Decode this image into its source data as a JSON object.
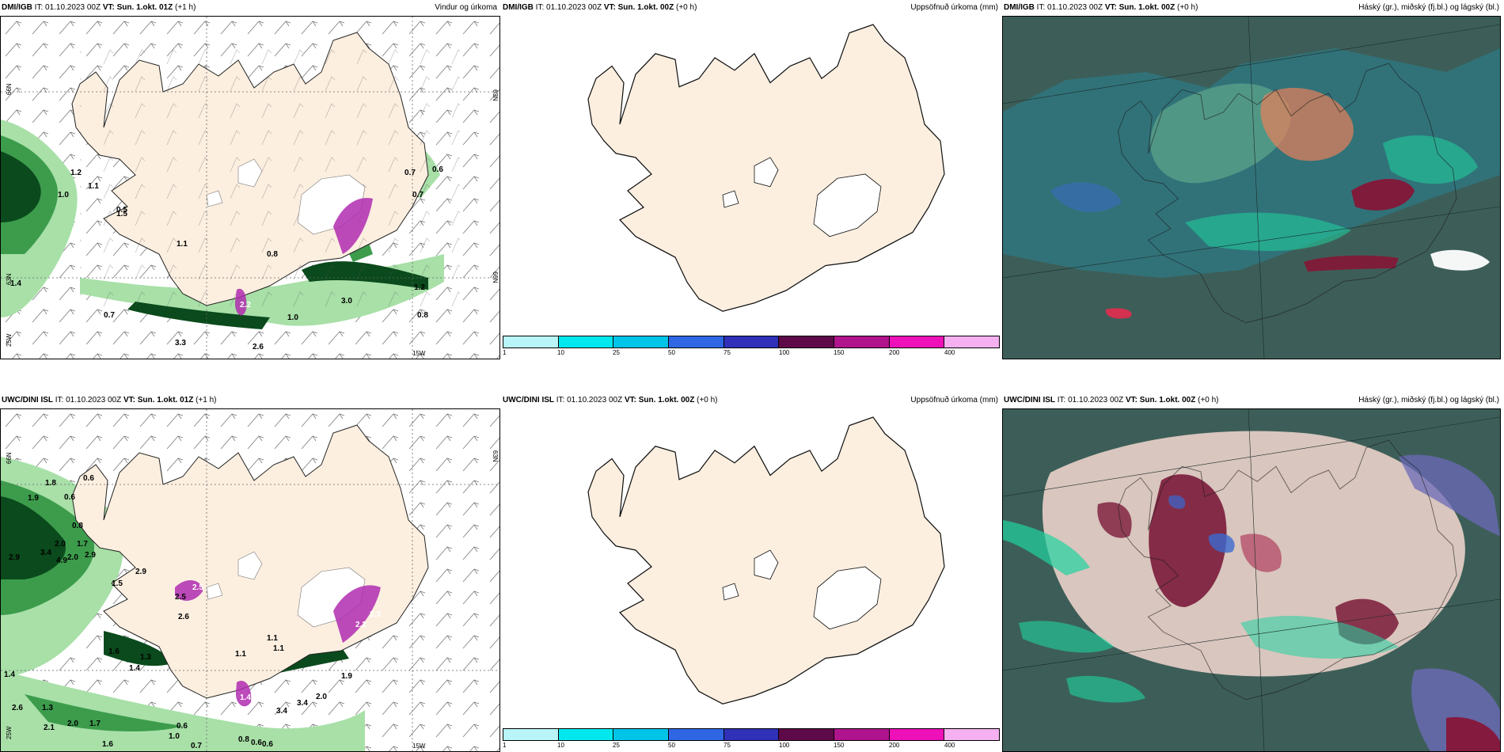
{
  "panels": {
    "p1": {
      "header": {
        "source": "DMI/IGB",
        "it": "IT: 01.10.2023 00Z",
        "vt_label": "VT:",
        "vt_value": "Sun. 1.okt. 01Z",
        "lead": "(+1 h)",
        "right_title": "Vindur og úrkoma"
      },
      "axis_labels": [
        "66N",
        "63N",
        "66N",
        "63N",
        "25W",
        "15W"
      ],
      "precip_labels": [
        "1.2",
        "1.1",
        "1.0",
        "0.5",
        "1.1",
        "0.8",
        "0.7",
        "0.6",
        "0.7",
        "1.5",
        "1.4",
        "0.7",
        "3.3",
        "2.6",
        "1.0",
        "3.0",
        "1.2",
        "0.8",
        "2.2"
      ]
    },
    "p2": {
      "header": {
        "source": "DMI/IGB",
        "it": "IT: 01.10.2023 00Z",
        "vt_label": "VT:",
        "vt_value": "Sun. 1.okt. 00Z",
        "lead": "(+0 h)",
        "right_title": "Uppsöfnuð úrkoma (mm)"
      },
      "colorbar": {
        "ticks": [
          "1",
          "10",
          "25",
          "50",
          "75",
          "100",
          "150",
          "200",
          "400"
        ],
        "colors": [
          "#b8f4f8",
          "#00e8ee",
          "#00c4e8",
          "#2f66e4",
          "#3030b8",
          "#5e0a48",
          "#b0148c",
          "#ee10b8",
          "#f4b0f0"
        ]
      }
    },
    "p3": {
      "header": {
        "source": "DMI/IGB",
        "it": "IT: 01.10.2023 00Z",
        "vt_label": "VT:",
        "vt_value": "Sun. 1.okt. 00Z",
        "lead": "(+0 h)",
        "right_title": "Háský (gr.), miðský (fj.bl.) og lágský (bl.)"
      }
    },
    "p4": {
      "header": {
        "source": "UWC/DINI ISL",
        "it": "IT: 01.10.2023 00Z",
        "vt_label": "VT:",
        "vt_value": "Sun. 1.okt. 01Z",
        "lead": "(+1 h)",
        "right_title": ""
      },
      "axis_labels": [
        "66N",
        "63N",
        "25W",
        "15W"
      ],
      "precip_labels": [
        "1.8",
        "0.6",
        "1.9",
        "2.9",
        "0.6",
        "0.8",
        "2.0",
        "1.7",
        "3.4",
        "4.9",
        "2.0",
        "2.9",
        "1.5",
        "2.9",
        "2.5",
        "2.5",
        "2.6",
        "1.1",
        "1.1",
        "1.3",
        "1.6",
        "1.4",
        "1.4",
        "2.6",
        "1.3",
        "2.1",
        "2.0",
        "1.7",
        "1.6",
        "1.0",
        "0.7",
        "0.6",
        "0.8",
        "0.6",
        "0.6",
        "3.4",
        "3.4",
        "2.0",
        "1.1",
        "1.9",
        "2.2",
        "2.3",
        "1.4"
      ]
    },
    "p5": {
      "header": {
        "source": "UWC/DINI ISL",
        "it": "IT: 01.10.2023 00Z",
        "vt_label": "VT:",
        "vt_value": "Sun. 1.okt. 00Z",
        "lead": "(+0 h)",
        "right_title": "Uppsöfnuð úrkoma (mm)"
      },
      "colorbar": {
        "ticks": [
          "1",
          "10",
          "25",
          "50",
          "75",
          "100",
          "150",
          "200",
          "400"
        ],
        "colors": [
          "#b8f4f8",
          "#00e8ee",
          "#00c4e8",
          "#2f66e4",
          "#3030b8",
          "#5e0a48",
          "#b0148c",
          "#ee10b8",
          "#f4b0f0"
        ]
      }
    },
    "p6": {
      "header": {
        "source": "UWC/DINI ISL",
        "it": "IT: 01.10.2023 00Z",
        "vt_label": "VT:",
        "vt_value": "Sun. 1.okt. 00Z",
        "lead": "(+0 h)",
        "right_title": "Háský (gr.), miðský (fj.bl.) og lágský (bl.)"
      }
    }
  },
  "colors": {
    "land": "#fcefe0",
    "precip_light": "#a8e0a8",
    "precip_mid": "#3c9c4c",
    "precip_dark": "#0a4a1c",
    "precip_heavy": "#b02cb0",
    "cloud_base": "#3d5e58"
  }
}
